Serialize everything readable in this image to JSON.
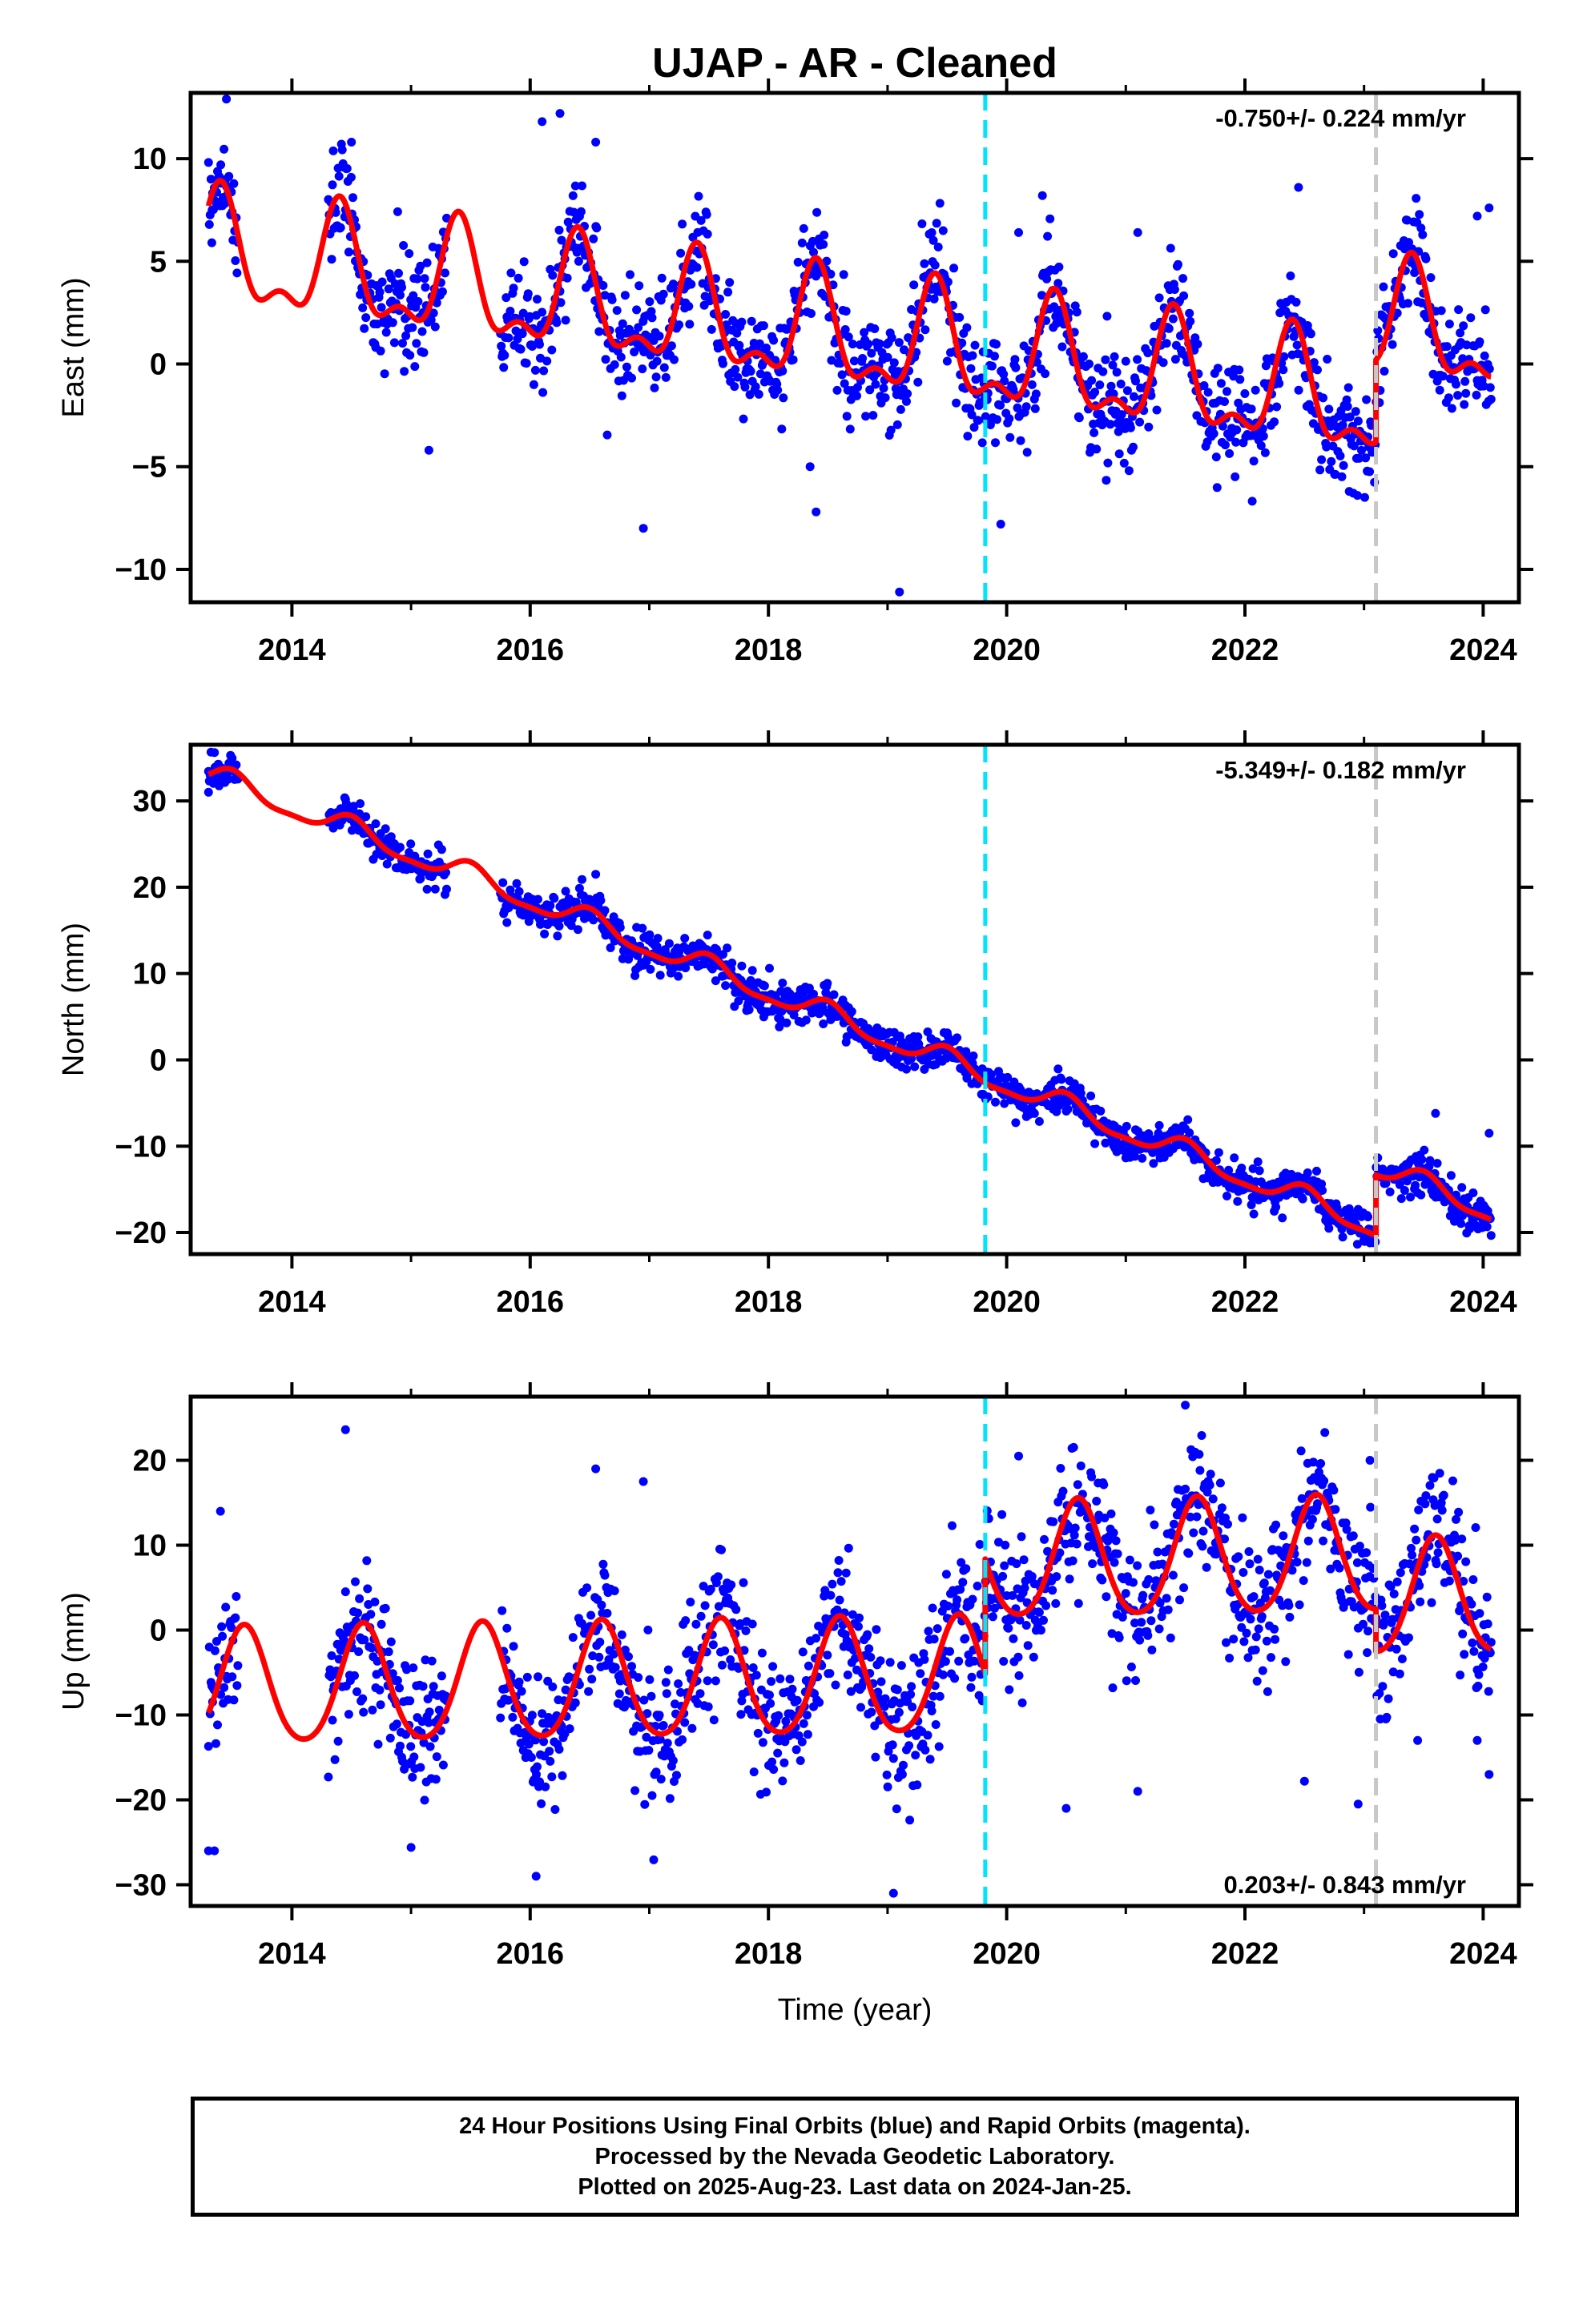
{
  "title": "UJAP  - AR - Cleaned",
  "colors": {
    "daily_positions": "#0000ff",
    "model_fit": "#ff0000",
    "equipment_change": "#00e5ff",
    "event_marker": "#c8c8c8"
  },
  "chart_data": [
    {
      "type": "scatter",
      "name_printed": "",
      "ylabel": "East (mm)",
      "xlabel": "",
      "xlim": [
        2013.15,
        2024.3
      ],
      "ylim": [
        -11.6,
        13.2
      ],
      "xticks": [
        2014,
        2016,
        2018,
        2020,
        2022,
        2024
      ],
      "yticks": [
        -10,
        -5,
        0,
        5,
        10
      ],
      "rate_text": "-0.750+/- 0.224 mm/yr",
      "rate_position": "top-right",
      "vertical_lines": [
        {
          "x": 2019.82,
          "style": "dashed",
          "color": "cyan"
        },
        {
          "x": 2023.1,
          "style": "dashed",
          "color": "gray"
        }
      ],
      "model": {
        "offset": 5.3,
        "trend": -0.75,
        "ref_year": 2013.3,
        "annual_amplitude": 2.5,
        "annual_peak": 2013.4,
        "semiannual_amplitude": 1.2,
        "semiannual_peak": 2013.4,
        "steps": [
          {
            "x": 2023.1,
            "size": 4.0
          }
        ]
      },
      "observation_gaps": [
        [
          2013.55,
          2014.3
        ],
        [
          2015.3,
          2015.75
        ]
      ],
      "observation_range": [
        2013.3,
        2024.07
      ],
      "noise_sd": 1.3,
      "series": [
        {
          "name": "",
          "values": [
            [
              2013.33,
              7.5
            ],
            [
              2013.4,
              8.8
            ],
            [
              2013.45,
              12.9
            ],
            [
              2014.5,
              10.8
            ],
            [
              2015.15,
              -4.2
            ],
            [
              2016.1,
              11.8
            ],
            [
              2016.25,
              12.2
            ],
            [
              2016.55,
              10.8
            ],
            [
              2016.95,
              -8.0
            ],
            [
              2018.4,
              -7.2
            ],
            [
              2018.35,
              -5.0
            ],
            [
              2019.1,
              -11.1
            ],
            [
              2019.95,
              -7.8
            ],
            [
              2020.3,
              8.2
            ],
            [
              2022.45,
              8.6
            ],
            [
              2023.95,
              7.2
            ],
            [
              2024.05,
              7.6
            ],
            [
              2020.1,
              6.4
            ],
            [
              2021.1,
              6.4
            ]
          ]
        }
      ]
    },
    {
      "type": "scatter",
      "name_printed": "",
      "ylabel": "North (mm)",
      "xlabel": "",
      "xlim": [
        2013.15,
        2024.3
      ],
      "ylim": [
        -22.5,
        36.5
      ],
      "xticks": [
        2014,
        2016,
        2018,
        2020,
        2022,
        2024
      ],
      "yticks": [
        -20,
        -10,
        0,
        10,
        20,
        30
      ],
      "rate_text": "-5.349+/- 0.182 mm/yr",
      "rate_position": "top-right",
      "vertical_lines": [
        {
          "x": 2019.82,
          "style": "dashed",
          "color": "cyan"
        },
        {
          "x": 2023.1,
          "style": "dashed",
          "color": "gray"
        }
      ],
      "model": {
        "offset": 33.0,
        "trend": -5.349,
        "ref_year": 2013.3,
        "annual_amplitude": 1.3,
        "annual_peak": 2013.5,
        "semiannual_amplitude": 0.4,
        "semiannual_peak": 2013.5,
        "steps": [
          {
            "x": 2023.1,
            "size": 7.0
          }
        ]
      },
      "observation_gaps": [
        [
          2013.55,
          2014.3
        ],
        [
          2015.3,
          2015.75
        ]
      ],
      "observation_range": [
        2013.3,
        2024.07
      ],
      "noise_sd": 1.1,
      "series": [
        {
          "name": "",
          "values": [
            [
              2013.35,
              35.6
            ],
            [
              2013.3,
              31.0
            ],
            [
              2016.55,
              21.5
            ],
            [
              2019.5,
              3.0
            ],
            [
              2023.05,
              -21.2
            ],
            [
              2023.6,
              -6.2
            ],
            [
              2024.05,
              -8.5
            ]
          ]
        }
      ]
    },
    {
      "type": "scatter",
      "name_printed": "",
      "ylabel": "Up (mm)",
      "xlabel": "Time (year)",
      "xlim": [
        2013.15,
        2024.3
      ],
      "ylim": [
        -32.5,
        27.5
      ],
      "xticks": [
        2014,
        2016,
        2018,
        2020,
        2022,
        2024
      ],
      "yticks": [
        -30,
        -20,
        -10,
        0,
        10,
        20
      ],
      "rate_text": "0.203+/- 0.843 mm/yr",
      "rate_position": "bottom-right",
      "vertical_lines": [
        {
          "x": 2019.82,
          "style": "dashed",
          "color": "cyan"
        },
        {
          "x": 2023.1,
          "style": "dashed",
          "color": "gray"
        }
      ],
      "model": {
        "offset": -7.0,
        "trend": 0.203,
        "ref_year": 2013.3,
        "annual_amplitude": 6.8,
        "annual_peak": 2013.6,
        "semiannual_amplitude": 0.8,
        "semiannual_peak": 2013.6,
        "steps": [
          {
            "x": 2019.82,
            "size": 13.5
          },
          {
            "x": 2023.1,
            "size": -5.0
          }
        ]
      },
      "observation_gaps": [
        [
          2013.55,
          2014.3
        ],
        [
          2015.3,
          2015.75
        ]
      ],
      "observation_range": [
        2013.3,
        2024.07
      ],
      "noise_sd": 4.2,
      "series": [
        {
          "name": "",
          "values": [
            [
              2013.3,
              -26.0
            ],
            [
              2013.35,
              -26.0
            ],
            [
              2013.4,
              14.0
            ],
            [
              2014.45,
              23.6
            ],
            [
              2015.0,
              -25.6
            ],
            [
              2016.05,
              -29.0
            ],
            [
              2016.55,
              19.0
            ],
            [
              2016.95,
              17.5
            ],
            [
              2019.05,
              -31.0
            ],
            [
              2020.5,
              -21.0
            ],
            [
              2021.1,
              -19.0
            ],
            [
              2021.5,
              26.5
            ],
            [
              2022.5,
              -17.8
            ],
            [
              2022.95,
              -20.5
            ],
            [
              2023.05,
              20.0
            ],
            [
              2023.45,
              -13.0
            ],
            [
              2023.95,
              -13.0
            ],
            [
              2024.05,
              -17.0
            ],
            [
              2020.1,
              20.5
            ]
          ]
        }
      ]
    }
  ],
  "footer": {
    "line1": "24 Hour Positions Using Final Orbits (blue) and Rapid Orbits (magenta).",
    "line2": "Processed by the Nevada Geodetic Laboratory.",
    "line3": "Plotted on 2025-Aug-23. Last data on 2024-Jan-25."
  }
}
